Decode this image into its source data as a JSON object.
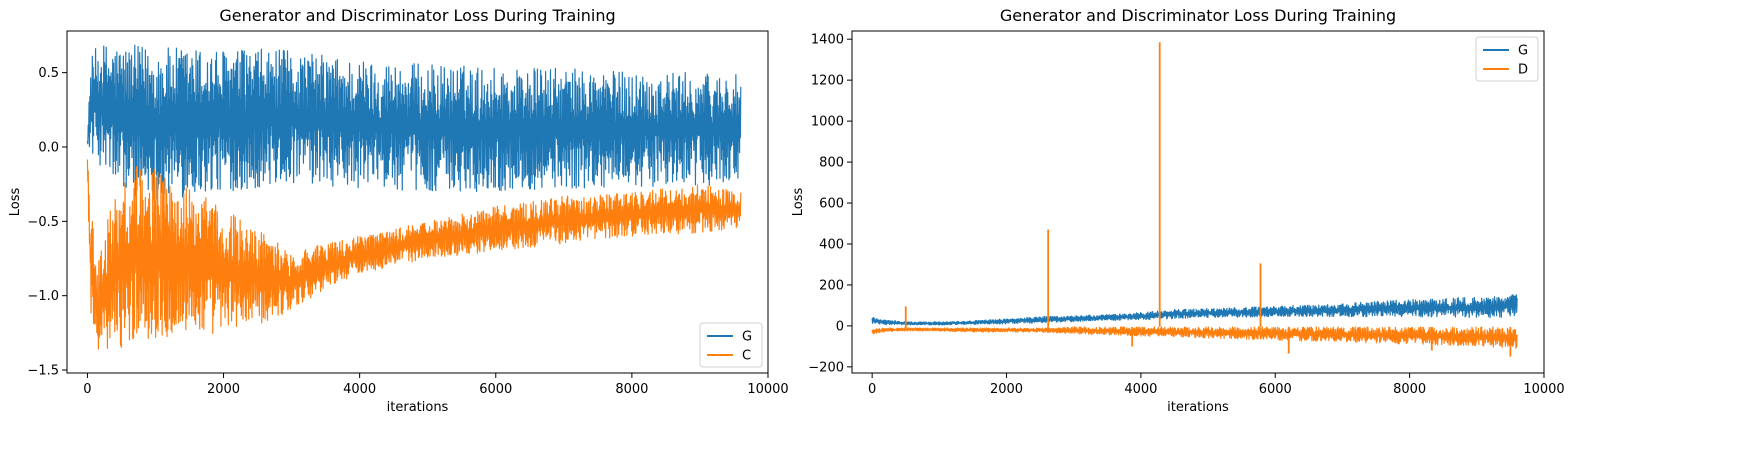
{
  "chart_data": [
    {
      "type": "line",
      "title": "Generator and Discriminator Loss During Training",
      "xlabel": "iterations",
      "ylabel": "Loss",
      "xlim": [
        -300,
        10000
      ],
      "ylim": [
        -1.52,
        0.78
      ],
      "xticks": [
        0,
        2000,
        4000,
        6000,
        8000,
        10000
      ],
      "xtick_labels": [
        "0",
        "2000",
        "4000",
        "6000",
        "8000",
        "10000"
      ],
      "yticks": [
        -1.5,
        -1.0,
        -0.5,
        0.0,
        0.5
      ],
      "ytick_labels": [
        "−1.5",
        "−1.0",
        "−0.5",
        "0.0",
        "0.5"
      ],
      "legend_position": "lower-right",
      "grid": false,
      "series": [
        {
          "name": "G",
          "color": "#1f77b4",
          "x": [
            0,
            50,
            150,
            300,
            500,
            800,
            1200,
            1600,
            2000,
            2500,
            3000,
            3500,
            4000,
            5000,
            6000,
            7000,
            8000,
            9000,
            9600
          ],
          "upper": [
            0.05,
            0.6,
            0.69,
            0.7,
            0.69,
            0.68,
            0.67,
            0.67,
            0.66,
            0.66,
            0.65,
            0.62,
            0.59,
            0.56,
            0.54,
            0.53,
            0.51,
            0.5,
            0.49
          ],
          "lower": [
            0.03,
            -0.05,
            -0.1,
            -0.2,
            -0.3,
            -0.35,
            -0.35,
            -0.33,
            -0.3,
            -0.28,
            -0.25,
            -0.27,
            -0.28,
            -0.3,
            -0.3,
            -0.28,
            -0.27,
            -0.26,
            -0.25
          ]
        },
        {
          "name": "C",
          "color": "#ff7f0e",
          "x": [
            0,
            50,
            150,
            300,
            500,
            800,
            1200,
            1600,
            2000,
            2500,
            3000,
            3500,
            4000,
            5000,
            6000,
            7000,
            8000,
            9000,
            9600
          ],
          "upper": [
            -0.08,
            -0.4,
            -0.8,
            -0.45,
            -0.2,
            -0.1,
            -0.2,
            -0.3,
            -0.4,
            -0.55,
            -0.7,
            -0.65,
            -0.6,
            -0.5,
            -0.4,
            -0.33,
            -0.3,
            -0.25,
            -0.3
          ],
          "lower": [
            -0.15,
            -1.3,
            -1.36,
            -1.4,
            -1.35,
            -1.3,
            -1.28,
            -1.27,
            -1.25,
            -1.2,
            -1.1,
            -0.95,
            -0.85,
            -0.75,
            -0.7,
            -0.65,
            -0.6,
            -0.58,
            -0.55
          ]
        }
      ]
    },
    {
      "type": "line",
      "title": "Generator and Discriminator Loss During Training",
      "xlabel": "iterations",
      "ylabel": "Loss",
      "xlim": [
        -300,
        10000
      ],
      "ylim": [
        -230,
        1440
      ],
      "xticks": [
        0,
        2000,
        4000,
        6000,
        8000,
        10000
      ],
      "xtick_labels": [
        "0",
        "2000",
        "4000",
        "6000",
        "8000",
        "10000"
      ],
      "yticks": [
        -200,
        0,
        200,
        400,
        600,
        800,
        1000,
        1200,
        1400
      ],
      "ytick_labels": [
        "−200",
        "0",
        "200",
        "400",
        "600",
        "800",
        "1000",
        "1200",
        "1400"
      ],
      "legend_position": "upper-right",
      "grid": false,
      "series": [
        {
          "name": "G",
          "color": "#1f77b4",
          "x": [
            0,
            200,
            500,
            1000,
            1500,
            2000,
            2500,
            3000,
            3500,
            4000,
            4500,
            5000,
            6000,
            7000,
            8000,
            9000,
            9600
          ],
          "upper": [
            45,
            30,
            20,
            20,
            25,
            35,
            45,
            50,
            55,
            65,
            80,
            85,
            95,
            110,
            130,
            140,
            160
          ],
          "lower": [
            10,
            5,
            5,
            5,
            8,
            10,
            15,
            20,
            25,
            30,
            35,
            40,
            45,
            45,
            45,
            40,
            40
          ]
        },
        {
          "name": "D",
          "color": "#ff7f0e",
          "x": [
            0,
            200,
            500,
            1000,
            1500,
            2000,
            2500,
            3000,
            3500,
            4000,
            4500,
            5000,
            6000,
            7000,
            8000,
            9000,
            9600
          ],
          "upper": [
            -15,
            -10,
            -10,
            -10,
            -10,
            -10,
            -10,
            -5,
            -5,
            -5,
            -5,
            -5,
            -5,
            -5,
            -5,
            -5,
            -5
          ],
          "lower": [
            -40,
            -30,
            -25,
            -25,
            -30,
            -30,
            -30,
            -40,
            -45,
            -50,
            -55,
            -60,
            -70,
            -80,
            -90,
            -100,
            -110
          ],
          "spikes": [
            {
              "x": 500,
              "y": 95
            },
            {
              "x": 2620,
              "y": 470
            },
            {
              "x": 4280,
              "y": 1385
            },
            {
              "x": 5780,
              "y": 305
            },
            {
              "x": 6200,
              "y": -135
            },
            {
              "x": 3870,
              "y": -100
            },
            {
              "x": 8330,
              "y": -120
            },
            {
              "x": 9500,
              "y": -150
            }
          ]
        }
      ]
    }
  ]
}
